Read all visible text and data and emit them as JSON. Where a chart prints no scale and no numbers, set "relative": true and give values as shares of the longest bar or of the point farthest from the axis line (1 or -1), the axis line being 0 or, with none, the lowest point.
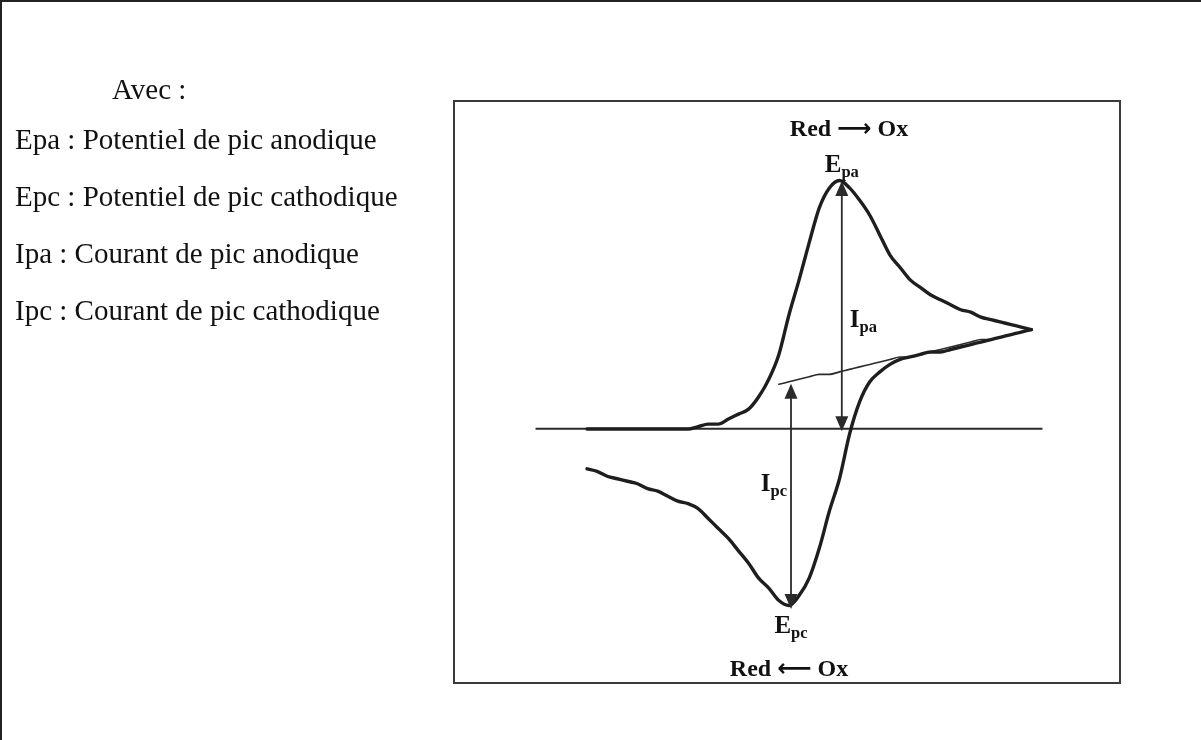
{
  "chart_data": {
    "type": "line",
    "relative": true,
    "categories": [
      null,
      null,
      null,
      null,
      null,
      null,
      null,
      null,
      null,
      null,
      null,
      null,
      null,
      null,
      null,
      null,
      null,
      null,
      null,
      null,
      null,
      null,
      null,
      null,
      null,
      null,
      null,
      null,
      null,
      null,
      null,
      null,
      null,
      null,
      null,
      null,
      null,
      null,
      null,
      null,
      null,
      null,
      null,
      null,
      null,
      null,
      null,
      null,
      null,
      null,
      null
    ],
    "series": [
      {
        "color": "#1e1e1e",
        "values": [
          null,
          null,
          null,
          null,
          null,
          0,
          0,
          0,
          0,
          0,
          0,
          0,
          0,
          0,
          0,
          0,
          0.01,
          0.02,
          0.02,
          0.04,
          0.06,
          0.08,
          0.13,
          0.2,
          0.3,
          0.46,
          0.6,
          0.75,
          0.89,
          0.97,
          1,
          0.97,
          0.92,
          0.86,
          0.78,
          0.7,
          0.65,
          0.6,
          0.57,
          0.54,
          0.52,
          0.5,
          0.48,
          0.47,
          0.45,
          0.44,
          0.43,
          0.42,
          0.41,
          0.4,
          null
        ]
      },
      {
        "color": "#1e1e1e",
        "values": [
          null,
          null,
          null,
          null,
          null,
          -0.16,
          -0.17,
          -0.19,
          -0.2,
          -0.21,
          -0.22,
          -0.24,
          -0.25,
          -0.27,
          -0.29,
          -0.3,
          -0.32,
          -0.36,
          -0.4,
          -0.44,
          -0.49,
          -0.54,
          -0.6,
          -0.64,
          -0.69,
          -0.71,
          -0.67,
          -0.6,
          -0.48,
          -0.33,
          -0.2,
          -0.02,
          0.11,
          0.19,
          0.23,
          0.26,
          0.28,
          0.29,
          0.3,
          0.31,
          0.31,
          0.32,
          0.33,
          0.34,
          0.35,
          0.36,
          0.37,
          0.38,
          0.39,
          0.4,
          null
        ]
      },
      {
        "color": "#2b2b2b",
        "values": [
          null,
          null,
          null,
          null,
          null,
          null,
          null,
          null,
          null,
          null,
          null,
          null,
          null,
          null,
          null,
          null,
          null,
          null,
          null,
          null,
          null,
          null,
          null,
          null,
          0.18,
          0.19,
          0.2,
          0.21,
          0.22,
          0.22,
          0.23,
          0.24,
          0.25,
          0.26,
          0.27,
          0.28,
          0.29,
          0.29,
          0.3,
          0.31,
          0.32,
          0.33,
          0.34,
          0.35,
          0.36,
          0.36,
          0.37,
          0.38,
          0.39,
          0.4,
          null
        ]
      }
    ],
    "annotations": [
      "Avec :",
      "Epa : Potentiel de pic anodique",
      "Epc : Potentiel de pic cathodique",
      "Ipa : Courant de pic anodique",
      "Ipc : Courant de pic cathodique",
      "Red ⟶ Ox",
      "Red ⟵ Ox",
      "E$_{pa}$",
      "E$_{pc}$",
      "I$_{pa}$",
      "I$_{pc}$"
    ]
  }
}
